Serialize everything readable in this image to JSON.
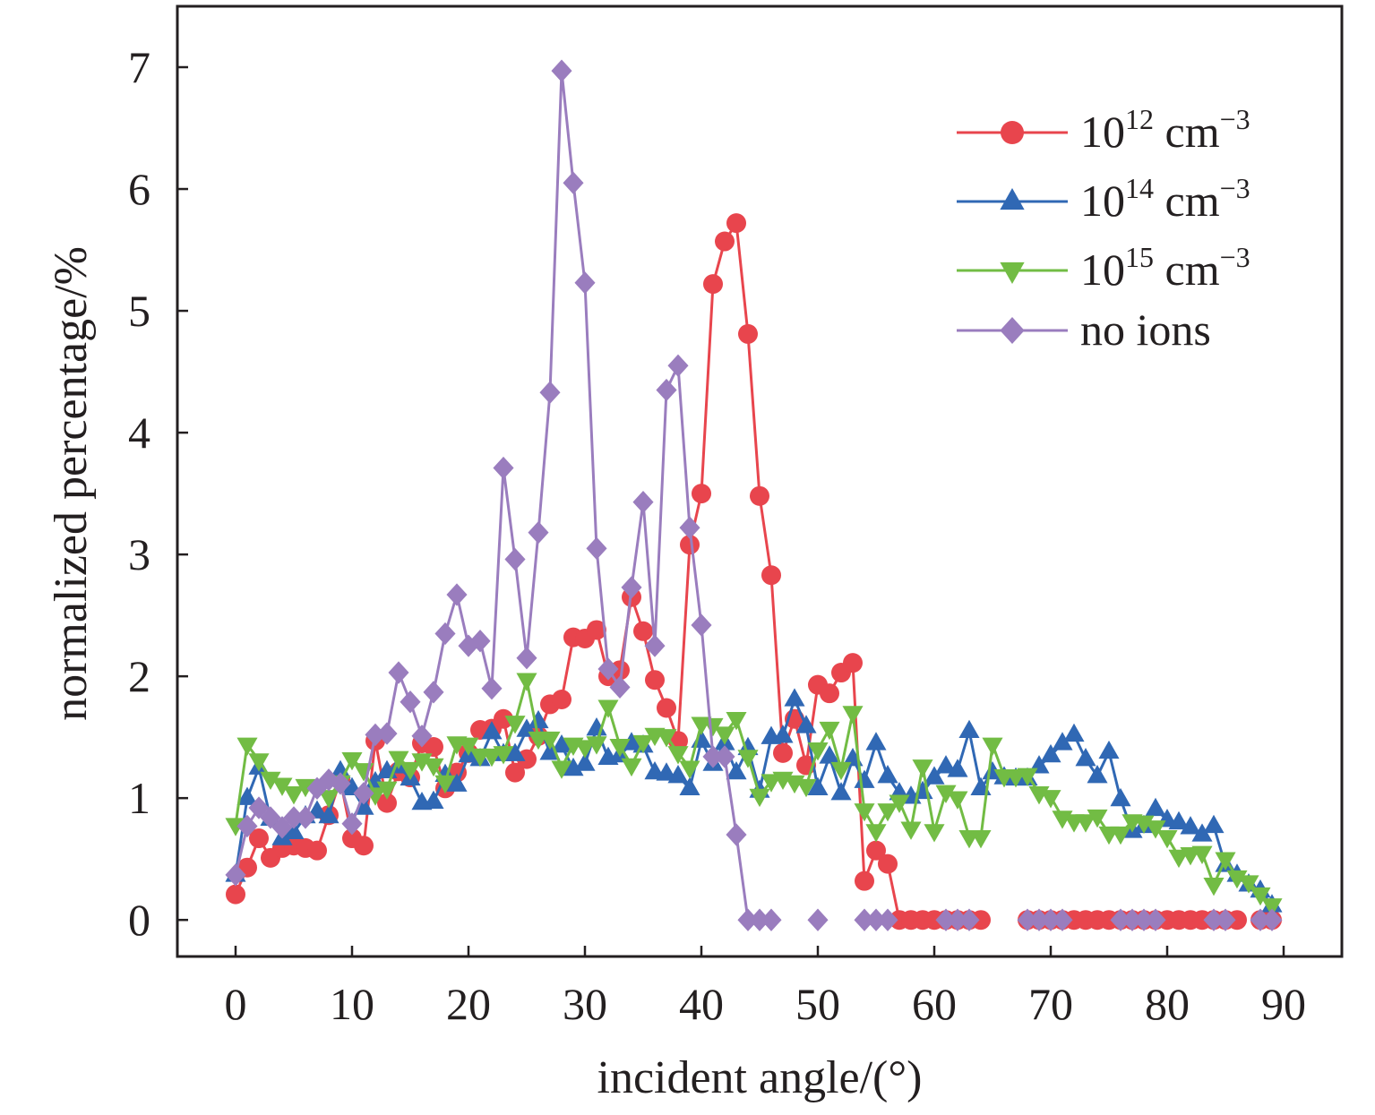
{
  "chart_data": {
    "type": "line",
    "xlabel": "incident angle/(°)",
    "ylabel": "normalized percentage/%",
    "xlim": [
      -5,
      95
    ],
    "ylim": [
      -0.3,
      7.5
    ],
    "xticks": [
      0,
      10,
      20,
      30,
      40,
      50,
      60,
      70,
      80,
      90
    ],
    "yticks": [
      0,
      1,
      2,
      3,
      4,
      5,
      6,
      7
    ],
    "grid": false,
    "legend_position": "top-right",
    "x": [
      0,
      1,
      2,
      3,
      4,
      5,
      6,
      7,
      8,
      9,
      10,
      11,
      12,
      13,
      14,
      15,
      16,
      17,
      18,
      19,
      20,
      21,
      22,
      23,
      24,
      25,
      26,
      27,
      28,
      29,
      30,
      31,
      32,
      33,
      34,
      35,
      36,
      37,
      38,
      39,
      40,
      41,
      42,
      43,
      44,
      45,
      46,
      47,
      48,
      49,
      50,
      51,
      52,
      53,
      54,
      55,
      56,
      57,
      58,
      59,
      60,
      61,
      62,
      63,
      64,
      65,
      66,
      67,
      68,
      69,
      70,
      71,
      72,
      73,
      74,
      75,
      76,
      77,
      78,
      79,
      80,
      81,
      82,
      83,
      84,
      85,
      86,
      87,
      88,
      89
    ],
    "series": [
      {
        "name_base": "10",
        "name_exp": "12",
        "name_unit": "cm",
        "name_unit_exp": "−3",
        "color": "#e8454d",
        "marker": "circle",
        "values": [
          0.21,
          0.43,
          0.67,
          0.51,
          0.59,
          0.61,
          0.59,
          0.57,
          0.86,
          1.15,
          0.67,
          0.61,
          1.47,
          0.96,
          1.22,
          1.17,
          1.45,
          1.42,
          1.08,
          1.21,
          1.37,
          1.56,
          1.57,
          1.65,
          1.21,
          1.32,
          1.51,
          1.77,
          1.81,
          2.32,
          2.31,
          2.38,
          2.0,
          2.05,
          2.65,
          2.37,
          1.97,
          1.74,
          1.47,
          3.08,
          3.5,
          5.22,
          5.57,
          5.72,
          4.81,
          3.48,
          2.83,
          1.37,
          1.65,
          1.27,
          1.93,
          1.86,
          2.03,
          2.11,
          0.32,
          0.57,
          0.46,
          0,
          0,
          0,
          0,
          0,
          0,
          0,
          0,
          null,
          null,
          null,
          0,
          0,
          0,
          0,
          0,
          0,
          0,
          0,
          0,
          0,
          0,
          0,
          0,
          0,
          0,
          0,
          0,
          0,
          0,
          null,
          0,
          0
        ]
      },
      {
        "name_base": "10",
        "name_exp": "14",
        "name_unit": "cm",
        "name_unit_exp": "−3",
        "color": "#3068b4",
        "marker": "triangle-up",
        "values": [
          0.37,
          1.0,
          1.25,
          0.83,
          0.67,
          0.72,
          0.85,
          0.89,
          0.85,
          1.22,
          1.08,
          0.92,
          1.13,
          1.22,
          1.26,
          1.16,
          0.96,
          0.97,
          1.19,
          1.11,
          1.35,
          1.32,
          1.54,
          1.36,
          1.36,
          1.56,
          1.63,
          1.37,
          1.43,
          1.24,
          1.28,
          1.57,
          1.33,
          1.35,
          1.45,
          1.43,
          1.21,
          1.2,
          1.18,
          1.08,
          1.47,
          1.28,
          1.45,
          1.21,
          1.41,
          1.06,
          1.5,
          1.51,
          1.81,
          1.59,
          1.08,
          1.34,
          1.04,
          1.32,
          1.14,
          1.45,
          1.18,
          1.04,
          1.01,
          1.05,
          1.17,
          1.26,
          1.23,
          1.55,
          1.08,
          1.21,
          1.17,
          1.16,
          1.16,
          1.26,
          1.35,
          1.45,
          1.52,
          1.32,
          1.18,
          1.38,
          0.99,
          0.73,
          0.77,
          0.91,
          0.82,
          0.8,
          0.76,
          0.7,
          0.77,
          0.45,
          0.37,
          0.29,
          0.24,
          0.12
        ]
      },
      {
        "name_base": "10",
        "name_exp": "15",
        "name_unit": "cm",
        "name_unit_exp": "−3",
        "color": "#72bc44",
        "marker": "triangle-down",
        "values": [
          0.78,
          1.44,
          1.31,
          1.16,
          1.11,
          1.04,
          1.1,
          1.08,
          1.01,
          1.13,
          1.32,
          1.23,
          1.03,
          1.08,
          1.33,
          1.24,
          1.31,
          1.27,
          1.13,
          1.45,
          1.44,
          1.35,
          1.35,
          1.37,
          1.62,
          1.97,
          1.49,
          1.49,
          1.25,
          1.44,
          1.42,
          1.45,
          1.75,
          1.43,
          1.27,
          1.46,
          1.52,
          1.51,
          1.37,
          1.25,
          1.61,
          1.6,
          1.53,
          1.65,
          1.34,
          1.02,
          1.14,
          1.16,
          1.13,
          1.1,
          1.4,
          1.57,
          1.24,
          1.7,
          0.9,
          0.73,
          0.9,
          0.97,
          0.75,
          1.26,
          0.73,
          1.05,
          1.0,
          0.68,
          0.68,
          1.44,
          1.18,
          1.18,
          1.19,
          1.04,
          1.01,
          0.84,
          0.81,
          0.81,
          0.85,
          0.71,
          0.71,
          0.81,
          0.8,
          0.76,
          0.68,
          0.52,
          0.54,
          0.55,
          0.29,
          0.5,
          0.35,
          0.31,
          0.21,
          0.12
        ]
      },
      {
        "name": "no ions",
        "color": "#9a7dbe",
        "marker": "diamond",
        "values": [
          0.37,
          0.77,
          0.92,
          0.84,
          0.76,
          0.84,
          0.84,
          1.08,
          1.15,
          1.12,
          0.79,
          1.04,
          1.52,
          1.53,
          2.03,
          1.79,
          1.51,
          1.87,
          2.35,
          2.67,
          2.25,
          2.29,
          1.9,
          3.71,
          2.96,
          2.15,
          3.18,
          4.33,
          6.97,
          6.05,
          5.23,
          3.05,
          2.06,
          1.91,
          2.73,
          3.43,
          2.25,
          4.35,
          4.55,
          3.22,
          2.42,
          1.34,
          1.34,
          0.7,
          0,
          0,
          0,
          null,
          null,
          null,
          0,
          null,
          null,
          null,
          0,
          0,
          0,
          null,
          null,
          null,
          null,
          0,
          0,
          0,
          null,
          null,
          null,
          null,
          0,
          0,
          0,
          0,
          null,
          null,
          null,
          null,
          0,
          0,
          0,
          0,
          null,
          null,
          null,
          null,
          0,
          0,
          null,
          null,
          0,
          0
        ]
      }
    ]
  }
}
